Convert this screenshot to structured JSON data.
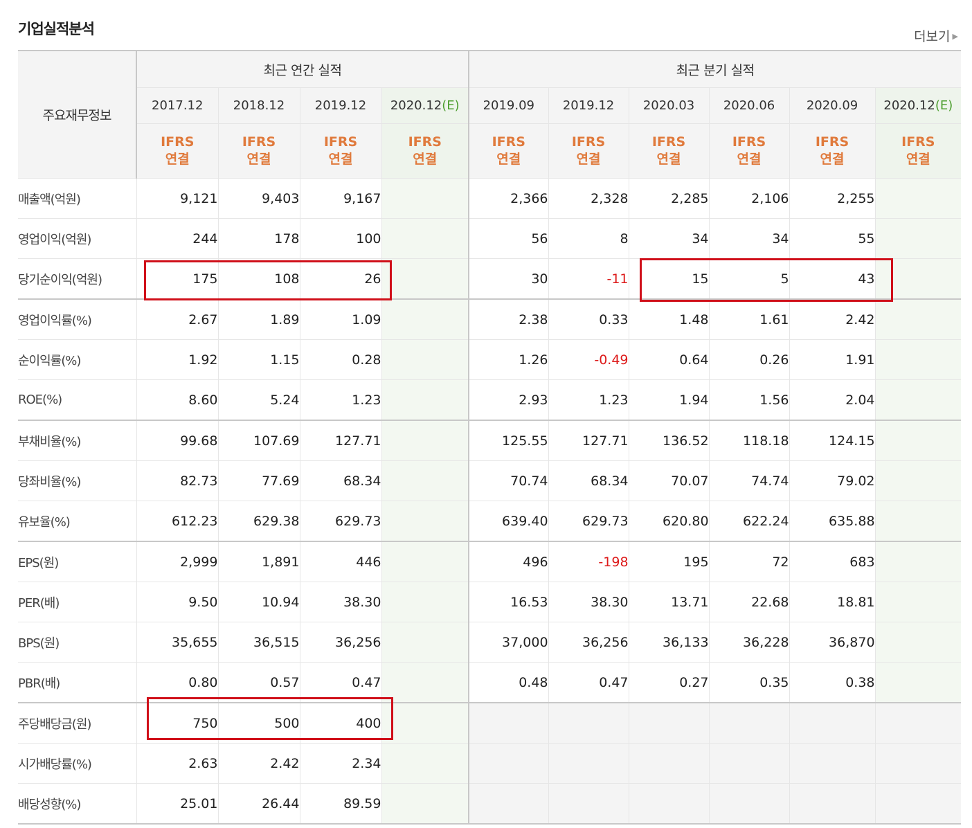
{
  "section": {
    "title": "기업실적분석",
    "more_label": "더보기"
  },
  "header": {
    "row_label": "주요재무정보",
    "annual_group": "최근 연간 실적",
    "quarter_group": "최근 분기 실적",
    "annual_periods": [
      "2017.12",
      "2018.12",
      "2019.12",
      "2020.12"
    ],
    "quarter_periods": [
      "2019.09",
      "2019.12",
      "2020.03",
      "2020.06",
      "2020.09",
      "2020.12"
    ],
    "estimate_mark": "(E)",
    "ifrs_line1": "IFRS",
    "ifrs_line2": "연결"
  },
  "rows": [
    {
      "label": "매출액(억원)",
      "annual": [
        "9,121",
        "9,403",
        "9,167",
        ""
      ],
      "quarter": [
        "2,366",
        "2,328",
        "2,285",
        "2,106",
        "2,255",
        ""
      ]
    },
    {
      "label": "영업이익(억원)",
      "annual": [
        "244",
        "178",
        "100",
        ""
      ],
      "quarter": [
        "56",
        "8",
        "34",
        "34",
        "55",
        ""
      ]
    },
    {
      "label": "당기순이익(억원)",
      "annual": [
        "175",
        "108",
        "26",
        ""
      ],
      "quarter": [
        "30",
        "-11",
        "15",
        "5",
        "43",
        ""
      ]
    },
    {
      "label": "영업이익률(%)",
      "annual": [
        "2.67",
        "1.89",
        "1.09",
        ""
      ],
      "quarter": [
        "2.38",
        "0.33",
        "1.48",
        "1.61",
        "2.42",
        ""
      ]
    },
    {
      "label": "순이익률(%)",
      "annual": [
        "1.92",
        "1.15",
        "0.28",
        ""
      ],
      "quarter": [
        "1.26",
        "-0.49",
        "0.64",
        "0.26",
        "1.91",
        ""
      ]
    },
    {
      "label": "ROE(%)",
      "annual": [
        "8.60",
        "5.24",
        "1.23",
        ""
      ],
      "quarter": [
        "2.93",
        "1.23",
        "1.94",
        "1.56",
        "2.04",
        ""
      ]
    },
    {
      "label": "부채비율(%)",
      "annual": [
        "99.68",
        "107.69",
        "127.71",
        ""
      ],
      "quarter": [
        "125.55",
        "127.71",
        "136.52",
        "118.18",
        "124.15",
        ""
      ]
    },
    {
      "label": "당좌비율(%)",
      "annual": [
        "82.73",
        "77.69",
        "68.34",
        ""
      ],
      "quarter": [
        "70.74",
        "68.34",
        "70.07",
        "74.74",
        "79.02",
        ""
      ]
    },
    {
      "label": "유보율(%)",
      "annual": [
        "612.23",
        "629.38",
        "629.73",
        ""
      ],
      "quarter": [
        "639.40",
        "629.73",
        "620.80",
        "622.24",
        "635.88",
        ""
      ]
    },
    {
      "label": "EPS(원)",
      "annual": [
        "2,999",
        "1,891",
        "446",
        ""
      ],
      "quarter": [
        "496",
        "-198",
        "195",
        "72",
        "683",
        ""
      ]
    },
    {
      "label": "PER(배)",
      "annual": [
        "9.50",
        "10.94",
        "38.30",
        ""
      ],
      "quarter": [
        "16.53",
        "38.30",
        "13.71",
        "22.68",
        "18.81",
        ""
      ]
    },
    {
      "label": "BPS(원)",
      "annual": [
        "35,655",
        "36,515",
        "36,256",
        ""
      ],
      "quarter": [
        "37,000",
        "36,256",
        "36,133",
        "36,228",
        "36,870",
        ""
      ]
    },
    {
      "label": "PBR(배)",
      "annual": [
        "0.80",
        "0.57",
        "0.47",
        ""
      ],
      "quarter": [
        "0.48",
        "0.47",
        "0.27",
        "0.35",
        "0.38",
        ""
      ]
    },
    {
      "label": "주당배당금(원)",
      "annual": [
        "750",
        "500",
        "400",
        ""
      ],
      "quarter": null
    },
    {
      "label": "시가배당률(%)",
      "annual": [
        "2.63",
        "2.42",
        "2.34",
        ""
      ],
      "quarter": null
    },
    {
      "label": "배당성향(%)",
      "annual": [
        "25.01",
        "26.44",
        "89.59",
        ""
      ],
      "quarter": null
    }
  ],
  "colors": {
    "accent_ifrs": "#e07a3c",
    "negative": "#dd1a1a",
    "estimate_bg": "#f3f8f1",
    "highlight_box": "#d0101a"
  }
}
